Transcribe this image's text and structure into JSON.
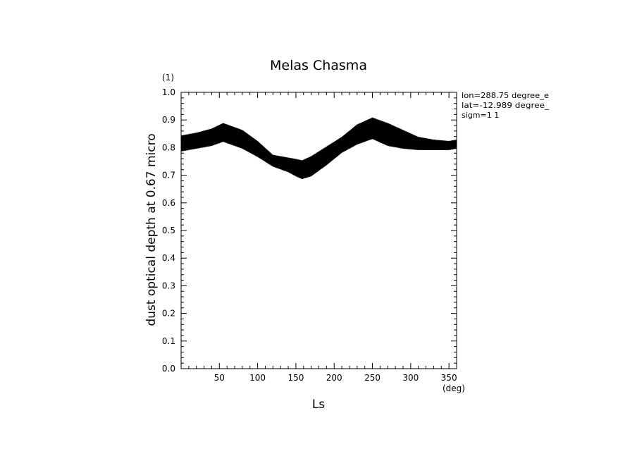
{
  "chart_data": {
    "type": "area",
    "title": "Melas Chasma",
    "xlabel": "Ls",
    "ylabel": "dust optical depth at 0.67 micro",
    "x_unit": "(deg)",
    "y_unit": "(1)",
    "xlim": [
      0,
      360
    ],
    "ylim": [
      0.0,
      1.0
    ],
    "x_ticks": [
      "50",
      "100",
      "150",
      "200",
      "250",
      "300",
      "350"
    ],
    "y_ticks": [
      "0.0",
      "0.1",
      "0.2",
      "0.3",
      "0.4",
      "0.5",
      "0.6",
      "0.7",
      "0.8",
      "0.9",
      "1.0"
    ],
    "grid": false,
    "legend": null,
    "annotations": [
      "lon=288.75 degree_e",
      "lat=-12.989 degree_",
      "sigm=1 1"
    ],
    "series": [
      {
        "color": "#000000",
        "x": [
          0,
          20,
          40,
          55,
          60,
          80,
          100,
          120,
          130,
          140,
          150,
          158,
          170,
          190,
          210,
          230,
          250,
          270,
          290,
          310,
          330,
          350,
          360
        ],
        "upper": [
          0.84,
          0.85,
          0.865,
          0.885,
          0.88,
          0.86,
          0.82,
          0.77,
          0.765,
          0.76,
          0.755,
          0.75,
          0.765,
          0.8,
          0.835,
          0.88,
          0.905,
          0.885,
          0.86,
          0.835,
          0.825,
          0.82,
          0.825
        ],
        "lower": [
          0.79,
          0.8,
          0.81,
          0.825,
          0.82,
          0.8,
          0.77,
          0.735,
          0.725,
          0.715,
          0.7,
          0.69,
          0.7,
          0.74,
          0.785,
          0.815,
          0.835,
          0.81,
          0.8,
          0.795,
          0.795,
          0.795,
          0.8
        ]
      }
    ]
  }
}
